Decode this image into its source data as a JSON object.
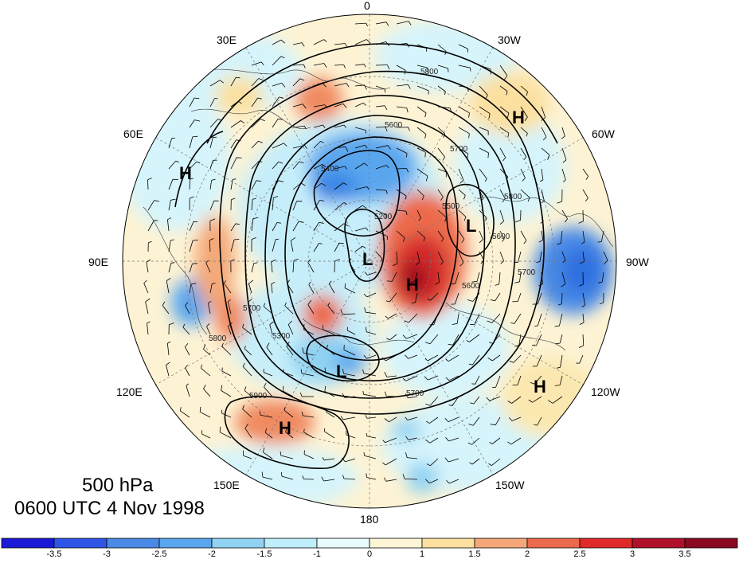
{
  "map": {
    "projection": "north polar stereographic",
    "level_caption": "500 hPa",
    "time_caption": "0600 UTC 4 Nov 1998",
    "longitude_labels": [
      {
        "name": "lon-0",
        "text": "0"
      },
      {
        "name": "lon-30w",
        "text": "30W"
      },
      {
        "name": "lon-60w",
        "text": "60W"
      },
      {
        "name": "lon-90w",
        "text": "90W"
      },
      {
        "name": "lon-120w",
        "text": "120W"
      },
      {
        "name": "lon-150w",
        "text": "150W"
      },
      {
        "name": "lon-180",
        "text": "180"
      },
      {
        "name": "lon-150e",
        "text": "150E"
      },
      {
        "name": "lon-120e",
        "text": "120E"
      },
      {
        "name": "lon-90e",
        "text": "90E"
      },
      {
        "name": "lon-60e",
        "text": "60E"
      },
      {
        "name": "lon-30e",
        "text": "30E"
      }
    ],
    "pressure_centers": [
      "H",
      "H",
      "H",
      "H",
      "H",
      "L",
      "L",
      "L",
      "L"
    ],
    "contour_labels": [
      "5800",
      "5700",
      "5600",
      "5400",
      "5200",
      "5300",
      "5500",
      "5600",
      "5700",
      "5800",
      "5900",
      "5700",
      "5800",
      "5600",
      "5700"
    ],
    "colors": {
      "strong_negative": "#1a1ae0",
      "negative": "#4f9be8",
      "weak_negative": "#bfeffa",
      "weak_positive": "#fbe9b8",
      "positive": "#f08a60",
      "strong_positive": "#c8102e",
      "contour": "#000000"
    }
  },
  "colorbar": {
    "tick_labels": [
      "-3.5",
      "-3",
      "-2.5",
      "-2",
      "-1.5",
      "-1",
      "0",
      "1",
      "1.5",
      "2",
      "2.5",
      "3",
      "3.5"
    ],
    "colors": [
      "#1a1ad6",
      "#2f55e6",
      "#4a8ae6",
      "#5aa6ee",
      "#8fd2f2",
      "#bdeefa",
      "#e8fbfd",
      "#fdf6d6",
      "#fbe0a0",
      "#f4a878",
      "#ec6a4c",
      "#e02a2a",
      "#b0102a",
      "#8a0a20"
    ]
  }
}
